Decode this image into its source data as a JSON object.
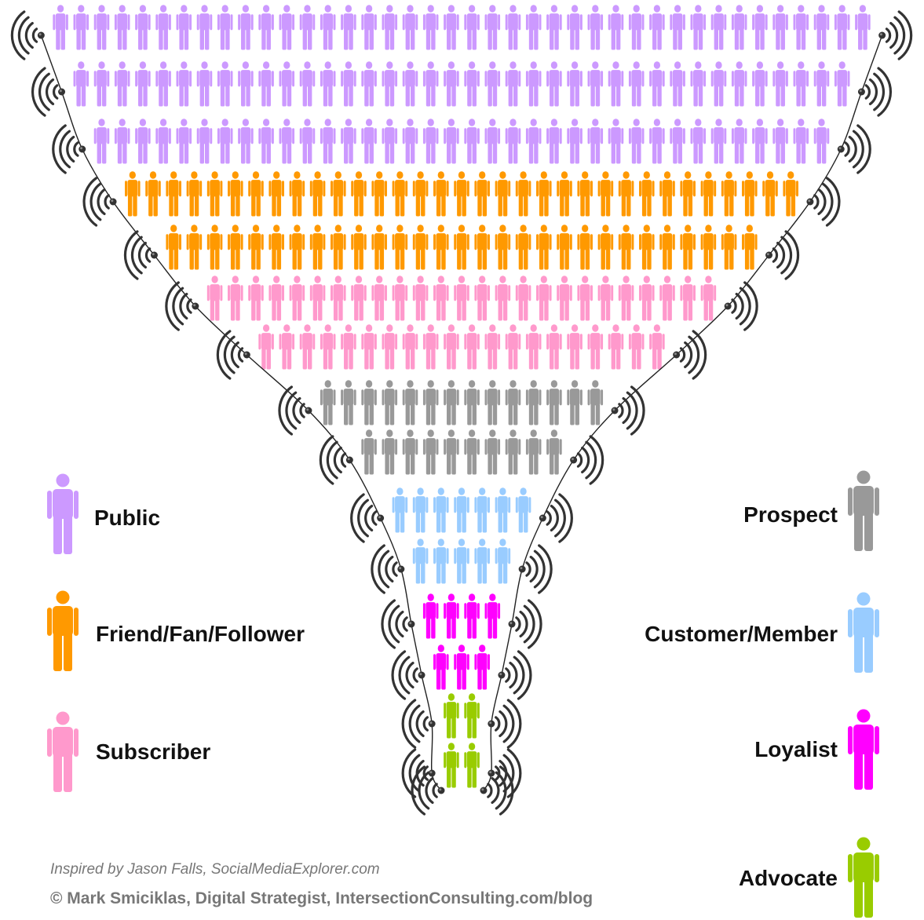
{
  "legend_left": [
    {
      "key": "public",
      "label": "Public",
      "color": "#cc99ff"
    },
    {
      "key": "friend",
      "label": "Friend/Fan/Follower",
      "color": "#ff9900"
    },
    {
      "key": "subscriber",
      "label": "Subscriber",
      "color": "#ff99cc"
    }
  ],
  "legend_right": [
    {
      "key": "prospect",
      "label": "Prospect",
      "color": "#999999"
    },
    {
      "key": "customer",
      "label": "Customer/Member",
      "color": "#99ccff"
    },
    {
      "key": "loyalist",
      "label": "Loyalist",
      "color": "#ff00ff"
    },
    {
      "key": "advocate",
      "label": "Advocate",
      "color": "#99cc00"
    }
  ],
  "funnel_rows": [
    {
      "segment": "Public",
      "count": 40
    },
    {
      "segment": "Public",
      "count": 38
    },
    {
      "segment": "Public",
      "count": 36
    },
    {
      "segment": "Friend/Fan/Follower",
      "count": 33
    },
    {
      "segment": "Friend/Fan/Follower",
      "count": 29
    },
    {
      "segment": "Subscriber",
      "count": 25
    },
    {
      "segment": "Subscriber",
      "count": 20
    },
    {
      "segment": "Prospect",
      "count": 14
    },
    {
      "segment": "Prospect",
      "count": 10
    },
    {
      "segment": "Customer/Member",
      "count": 7
    },
    {
      "segment": "Customer/Member",
      "count": 5
    },
    {
      "segment": "Loyalist",
      "count": 4
    },
    {
      "segment": "Loyalist",
      "count": 3
    },
    {
      "segment": "Advocate",
      "count": 2
    },
    {
      "segment": "Advocate",
      "count": 2
    }
  ],
  "credits": {
    "inspired": "Inspired by Jason Falls, SocialMediaExplorer.com",
    "copyright": "© Mark Smiciklas, Digital Strategist, IntersectionConsulting.com/blog"
  }
}
